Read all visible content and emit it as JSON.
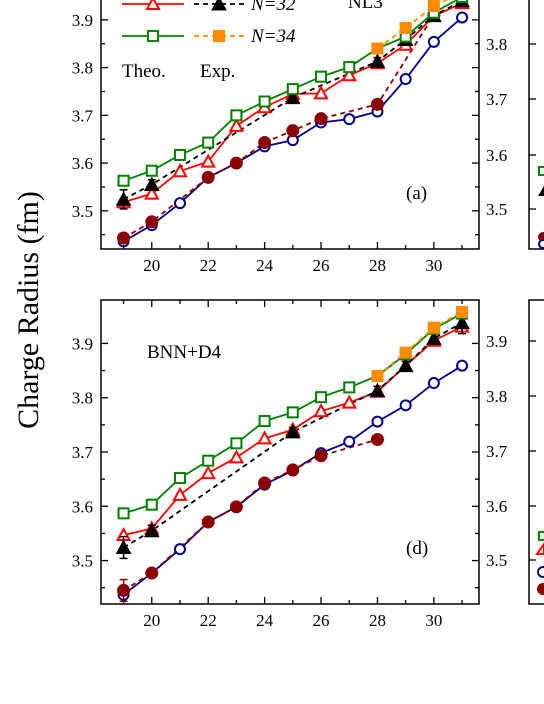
{
  "figure": {
    "ylabel": "Charge Radius (fm)"
  },
  "colors": {
    "theo_32": "#ff0000",
    "exp_32": "#000000",
    "theo_34": "#008000",
    "exp_34": "#ff8c00",
    "theo_a": "#00008b",
    "exp_a": "#8b0000"
  },
  "chart_data": [
    {
      "type": "line",
      "panel_label": "(a)",
      "model_label": "NL3",
      "legend": {
        "row1_label": "N=32",
        "row2_label": "N=34",
        "theo_label": "Theo.",
        "exp_label": "Exp."
      },
      "xlim": [
        18.2,
        31.6
      ],
      "ylim": [
        3.42,
        3.95
      ],
      "xticks": [
        20,
        22,
        24,
        26,
        28,
        30
      ],
      "yticks": [
        3.5,
        3.6,
        3.7,
        3.8,
        3.9
      ],
      "series": [
        {
          "key": "theo_a",
          "x": [
            19,
            20,
            21,
            22,
            23,
            24,
            25,
            26,
            27,
            28,
            29,
            30,
            31
          ],
          "y": [
            3.436,
            3.47,
            3.516,
            3.57,
            3.6,
            3.635,
            3.648,
            3.685,
            3.692,
            3.708,
            3.776,
            3.854,
            3.905
          ]
        },
        {
          "key": "exp_a",
          "x": [
            19,
            20,
            22,
            23,
            24,
            25,
            26,
            28,
            30
          ],
          "y": [
            3.443,
            3.477,
            3.57,
            3.6,
            3.643,
            3.668,
            3.693,
            3.723,
            3.91
          ],
          "err": [
            0.01,
            0.008,
            0,
            0,
            0,
            0,
            0,
            0,
            0
          ]
        },
        {
          "key": "theo_32",
          "x": [
            19,
            20,
            21,
            22,
            23,
            24,
            25,
            26,
            27,
            28,
            29,
            30,
            31
          ],
          "y": [
            3.518,
            3.536,
            3.583,
            3.603,
            3.678,
            3.717,
            3.745,
            3.746,
            3.784,
            3.809,
            3.848,
            3.908,
            3.935
          ]
        },
        {
          "key": "exp_32",
          "x": [
            19,
            20,
            25,
            28,
            29,
            30,
            31
          ],
          "y": [
            3.524,
            3.555,
            3.737,
            3.813,
            3.859,
            3.909,
            3.94
          ],
          "err": [
            0.02,
            0.01,
            0.008,
            0.008,
            0.008,
            0.01,
            0.01
          ]
        },
        {
          "key": "theo_34",
          "x": [
            19,
            20,
            21,
            22,
            23,
            24,
            25,
            26,
            27,
            28,
            29,
            30,
            31
          ],
          "y": [
            3.563,
            3.584,
            3.617,
            3.643,
            3.7,
            3.729,
            3.755,
            3.781,
            3.801,
            3.84,
            3.865,
            3.915,
            3.948
          ]
        },
        {
          "key": "exp_34",
          "x": [
            28,
            29,
            30,
            31
          ],
          "y": [
            3.84,
            3.883,
            3.929,
            3.958
          ],
          "err": [
            0,
            0,
            0,
            0
          ]
        }
      ]
    },
    {
      "type": "line",
      "panel_label": "(d)",
      "model_label": "BNN+D4",
      "xlim": [
        18.2,
        31.6
      ],
      "ylim": [
        3.42,
        3.98
      ],
      "xticks": [
        20,
        22,
        24,
        26,
        28,
        30
      ],
      "yticks": [
        3.5,
        3.6,
        3.7,
        3.8,
        3.9
      ],
      "series": [
        {
          "key": "theo_a",
          "x": [
            19,
            20,
            21,
            22,
            23,
            24,
            25,
            26,
            27,
            28,
            29,
            30,
            31
          ],
          "y": [
            3.437,
            3.477,
            3.521,
            3.571,
            3.599,
            3.64,
            3.666,
            3.698,
            3.719,
            3.756,
            3.786,
            3.827,
            3.859
          ]
        },
        {
          "key": "exp_a",
          "x": [
            19,
            20,
            22,
            23,
            24,
            25,
            26,
            28
          ],
          "y": [
            3.445,
            3.477,
            3.571,
            3.599,
            3.643,
            3.667,
            3.693,
            3.723
          ],
          "err": [
            0.02,
            0.008,
            0,
            0,
            0,
            0,
            0,
            0
          ]
        },
        {
          "key": "theo_32",
          "x": [
            19,
            20,
            21,
            22,
            23,
            24,
            25,
            26,
            27,
            28,
            29,
            30,
            31
          ],
          "y": [
            3.547,
            3.559,
            3.621,
            3.661,
            3.69,
            3.725,
            3.741,
            3.775,
            3.791,
            3.811,
            3.859,
            3.905,
            3.931
          ]
        },
        {
          "key": "exp_32",
          "x": [
            19,
            20,
            25,
            28,
            29,
            30,
            31
          ],
          "y": [
            3.524,
            3.555,
            3.737,
            3.813,
            3.859,
            3.909,
            3.938
          ],
          "err": [
            0.02,
            0.01,
            0.008,
            0.008,
            0.008,
            0.01,
            0.02
          ]
        },
        {
          "key": "theo_34",
          "x": [
            19,
            20,
            21,
            22,
            23,
            24,
            25,
            26,
            27,
            28,
            29,
            30,
            31
          ],
          "y": [
            3.587,
            3.603,
            3.652,
            3.684,
            3.716,
            3.757,
            3.773,
            3.801,
            3.819,
            3.84,
            3.88,
            3.927,
            3.955
          ]
        },
        {
          "key": "exp_34",
          "x": [
            28,
            29,
            30,
            31
          ],
          "y": [
            3.84,
            3.883,
            3.929,
            3.958
          ],
          "err": [
            0,
            0,
            0,
            0
          ]
        }
      ]
    }
  ],
  "right_partial": {
    "top_ticks": [
      "3.8",
      "3.7",
      "3.6",
      "3.5"
    ],
    "bottom_ticks": [
      "3.9",
      "3.8",
      "3.7",
      "3.6",
      "3.5"
    ]
  }
}
